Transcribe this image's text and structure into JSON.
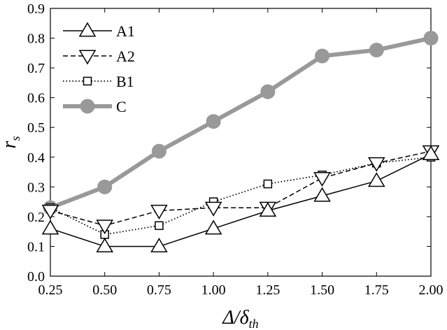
{
  "chart_data": {
    "type": "line",
    "x": [
      0.25,
      0.5,
      0.75,
      1.0,
      1.25,
      1.5,
      1.75,
      2.0
    ],
    "x_tick_labels": [
      "0.25",
      "0.50",
      "0.75",
      "1.00",
      "1.25",
      "1.50",
      "1.75",
      "2.00"
    ],
    "y_tick_labels": [
      "0.0",
      "0.1",
      "0.2",
      "0.3",
      "0.4",
      "0.5",
      "0.6",
      "0.7",
      "0.8",
      "0.9"
    ],
    "xlabel": "Δ/δ_th",
    "ylabel": "r_s",
    "xlim": [
      0.25,
      2.0
    ],
    "ylim": [
      0.0,
      0.9
    ],
    "grid": false,
    "legend_position": "top-left",
    "series": [
      {
        "name": "A1",
        "values": [
          0.16,
          0.1,
          0.1,
          0.16,
          0.22,
          0.27,
          0.32,
          0.41
        ],
        "marker": "triangle-up",
        "line": "solid",
        "color": "#000000"
      },
      {
        "name": "A2",
        "values": [
          0.22,
          0.17,
          0.22,
          0.23,
          0.23,
          0.33,
          0.38,
          0.42
        ],
        "marker": "triangle-down",
        "line": "dashed",
        "color": "#000000"
      },
      {
        "name": "B1",
        "values": [
          0.23,
          0.14,
          0.17,
          0.25,
          0.31,
          0.34,
          0.38,
          0.4
        ],
        "marker": "square",
        "line": "dotted",
        "color": "#000000"
      },
      {
        "name": "C",
        "values": [
          0.23,
          0.3,
          0.42,
          0.52,
          0.62,
          0.74,
          0.76,
          0.8
        ],
        "marker": "circle",
        "line": "solid-thick",
        "color": "#999999"
      }
    ]
  }
}
